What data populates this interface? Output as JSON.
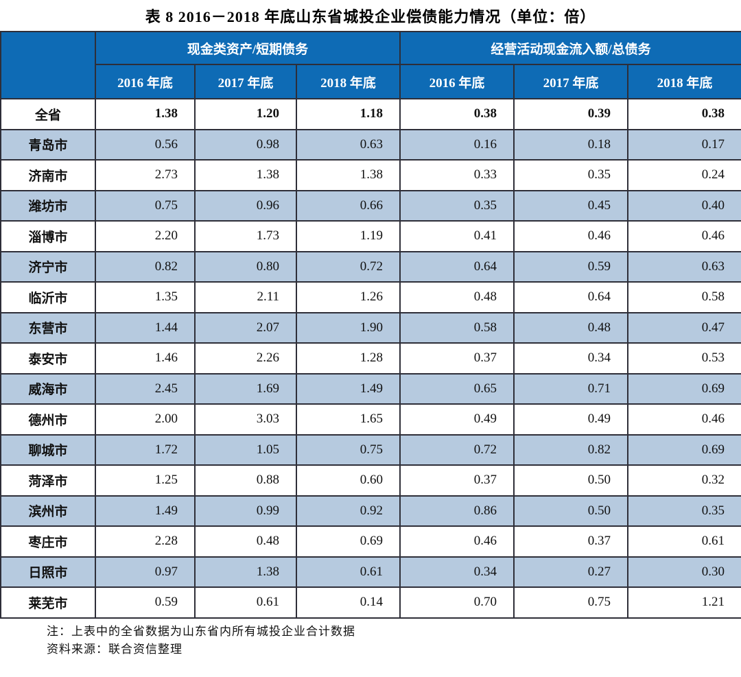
{
  "title": "表 8  2016－2018 年底山东省城投企业偿债能力情况（单位：倍）",
  "table": {
    "group_headers": [
      "现金类资产/短期债务",
      "经营活动现金流入额/总债务"
    ],
    "year_headers": [
      "2016 年底",
      "2017 年底",
      "2018 年底",
      "2016 年底",
      "2017 年底",
      "2018 年底"
    ],
    "rows": [
      {
        "region": "全省",
        "values": [
          "1.38",
          "1.20",
          "1.18",
          "0.38",
          "0.39",
          "0.38"
        ],
        "bold": true,
        "stripe": false
      },
      {
        "region": "青岛市",
        "values": [
          "0.56",
          "0.98",
          "0.63",
          "0.16",
          "0.18",
          "0.17"
        ],
        "bold": false,
        "stripe": true
      },
      {
        "region": "济南市",
        "values": [
          "2.73",
          "1.38",
          "1.38",
          "0.33",
          "0.35",
          "0.24"
        ],
        "bold": false,
        "stripe": false
      },
      {
        "region": "潍坊市",
        "values": [
          "0.75",
          "0.96",
          "0.66",
          "0.35",
          "0.45",
          "0.40"
        ],
        "bold": false,
        "stripe": true
      },
      {
        "region": "淄博市",
        "values": [
          "2.20",
          "1.73",
          "1.19",
          "0.41",
          "0.46",
          "0.46"
        ],
        "bold": false,
        "stripe": false
      },
      {
        "region": "济宁市",
        "values": [
          "0.82",
          "0.80",
          "0.72",
          "0.64",
          "0.59",
          "0.63"
        ],
        "bold": false,
        "stripe": true
      },
      {
        "region": "临沂市",
        "values": [
          "1.35",
          "2.11",
          "1.26",
          "0.48",
          "0.64",
          "0.58"
        ],
        "bold": false,
        "stripe": false
      },
      {
        "region": "东营市",
        "values": [
          "1.44",
          "2.07",
          "1.90",
          "0.58",
          "0.48",
          "0.47"
        ],
        "bold": false,
        "stripe": true
      },
      {
        "region": "泰安市",
        "values": [
          "1.46",
          "2.26",
          "1.28",
          "0.37",
          "0.34",
          "0.53"
        ],
        "bold": false,
        "stripe": false
      },
      {
        "region": "威海市",
        "values": [
          "2.45",
          "1.69",
          "1.49",
          "0.65",
          "0.71",
          "0.69"
        ],
        "bold": false,
        "stripe": true
      },
      {
        "region": "德州市",
        "values": [
          "2.00",
          "3.03",
          "1.65",
          "0.49",
          "0.49",
          "0.46"
        ],
        "bold": false,
        "stripe": false
      },
      {
        "region": "聊城市",
        "values": [
          "1.72",
          "1.05",
          "0.75",
          "0.72",
          "0.82",
          "0.69"
        ],
        "bold": false,
        "stripe": true
      },
      {
        "region": "菏泽市",
        "values": [
          "1.25",
          "0.88",
          "0.60",
          "0.37",
          "0.50",
          "0.32"
        ],
        "bold": false,
        "stripe": false
      },
      {
        "region": "滨州市",
        "values": [
          "1.49",
          "0.99",
          "0.92",
          "0.86",
          "0.50",
          "0.35"
        ],
        "bold": false,
        "stripe": true
      },
      {
        "region": "枣庄市",
        "values": [
          "2.28",
          "0.48",
          "0.69",
          "0.46",
          "0.37",
          "0.61"
        ],
        "bold": false,
        "stripe": false
      },
      {
        "region": "日照市",
        "values": [
          "0.97",
          "1.38",
          "0.61",
          "0.34",
          "0.27",
          "0.30"
        ],
        "bold": false,
        "stripe": true
      },
      {
        "region": "莱芜市",
        "values": [
          "0.59",
          "0.61",
          "0.14",
          "0.70",
          "0.75",
          "1.21"
        ],
        "bold": false,
        "stripe": false
      }
    ]
  },
  "notes": [
    "注：上表中的全省数据为山东省内所有城投企业合计数据",
    "资料来源：联合资信整理"
  ],
  "colors": {
    "header_bg": "#0e6bb5",
    "header_text": "#ffffff",
    "stripe_bg": "#b6cadf",
    "border": "#2e2e38"
  }
}
